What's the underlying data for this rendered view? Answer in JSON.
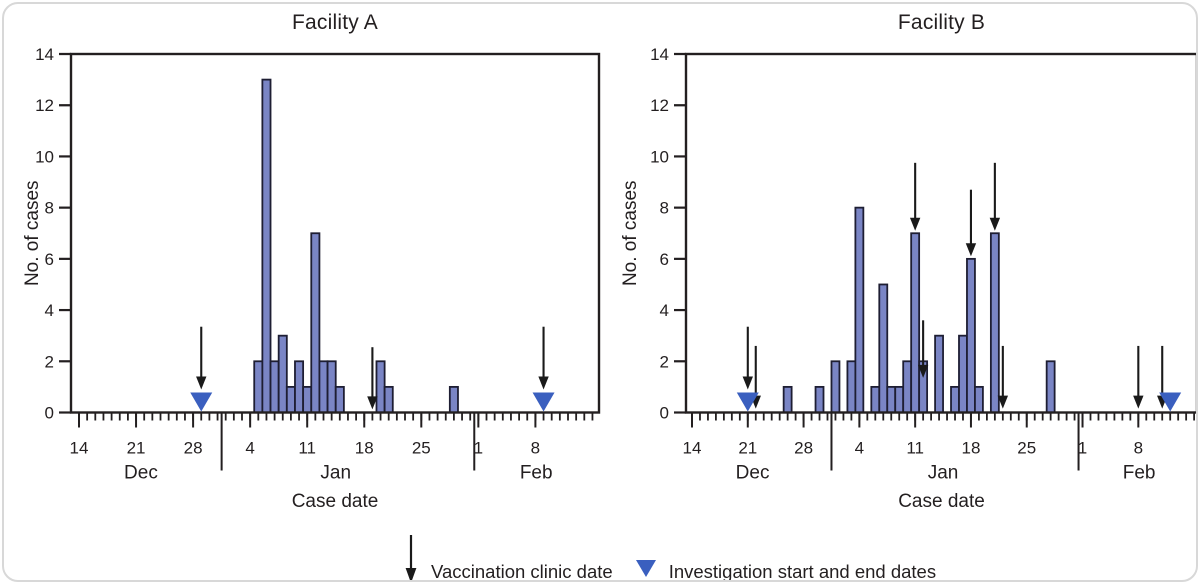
{
  "legend": {
    "vaccination_label": "Vaccination clinic date",
    "investigation_label": "Investigation start and end dates"
  },
  "colors": {
    "bar_fill": "#7a85c5",
    "bar_stroke": "#1e1e33",
    "triangle": "#3a5fbf",
    "axis": "#231f20",
    "arrow": "#1a1a1a"
  },
  "chart_data": [
    {
      "type": "bar",
      "title": "Facility A",
      "xlabel": "Case date",
      "ylabel": "No. of cases",
      "ylim": [
        0,
        14
      ],
      "yticks": [
        0,
        2,
        4,
        6,
        8,
        10,
        12,
        14
      ],
      "x_start_date": "Dec 14",
      "x_end_date": "Feb 15",
      "total_days": 63,
      "x_major_ticks": [
        {
          "day_index": 0,
          "label": "14"
        },
        {
          "day_index": 7,
          "label": "21"
        },
        {
          "day_index": 14,
          "label": "28"
        },
        {
          "day_index": 21,
          "label": "4"
        },
        {
          "day_index": 28,
          "label": "11"
        },
        {
          "day_index": 35,
          "label": "18"
        },
        {
          "day_index": 42,
          "label": "25"
        },
        {
          "day_index": 49,
          "label": "1"
        },
        {
          "day_index": 56,
          "label": "8"
        }
      ],
      "month_labels": [
        {
          "label": "Dec",
          "day_index": 7.6
        },
        {
          "label": "Jan",
          "day_index": 31.5
        },
        {
          "label": "Feb",
          "day_index": 56.1
        }
      ],
      "month_dividers": [
        17.5,
        48.5
      ],
      "bars": [
        {
          "date": "Jan 5",
          "day_index": 22,
          "count": 2
        },
        {
          "date": "Jan 6",
          "day_index": 23,
          "count": 13
        },
        {
          "date": "Jan 7",
          "day_index": 24,
          "count": 2
        },
        {
          "date": "Jan 8",
          "day_index": 25,
          "count": 3
        },
        {
          "date": "Jan 9",
          "day_index": 26,
          "count": 1
        },
        {
          "date": "Jan 10",
          "day_index": 27,
          "count": 2
        },
        {
          "date": "Jan 11",
          "day_index": 28,
          "count": 1
        },
        {
          "date": "Jan 12",
          "day_index": 29,
          "count": 7
        },
        {
          "date": "Jan 13",
          "day_index": 30,
          "count": 2
        },
        {
          "date": "Jan 14",
          "day_index": 31,
          "count": 2
        },
        {
          "date": "Jan 15",
          "day_index": 32,
          "count": 1
        },
        {
          "date": "Jan 20",
          "day_index": 37,
          "count": 2
        },
        {
          "date": "Jan 21",
          "day_index": 38,
          "count": 1
        },
        {
          "date": "Jan 29",
          "day_index": 46,
          "count": 1
        }
      ],
      "vaccination_arrows": [
        {
          "date": "Dec 29",
          "day_index": 15,
          "from": 3.35,
          "to": 0.9
        },
        {
          "date": "Jan 19",
          "day_index": 36,
          "from": 2.55,
          "to": 0.12
        },
        {
          "date": "Feb 9",
          "day_index": 57,
          "from": 3.35,
          "to": 0.9
        }
      ],
      "investigation_markers": [
        {
          "date": "Dec 29",
          "day_index": 15,
          "label": "start"
        },
        {
          "date": "Feb 9",
          "day_index": 57,
          "label": "end"
        }
      ]
    },
    {
      "type": "bar",
      "title": "Facility B",
      "xlabel": "Case date",
      "ylabel": "No. of cases",
      "ylim": [
        0,
        14
      ],
      "yticks": [
        0,
        2,
        4,
        6,
        8,
        10,
        12,
        14
      ],
      "x_start_date": "Dec 14",
      "x_end_date": "Feb 15",
      "total_days": 63,
      "x_major_ticks": [
        {
          "day_index": 0,
          "label": "14"
        },
        {
          "day_index": 7,
          "label": "21"
        },
        {
          "day_index": 14,
          "label": "28"
        },
        {
          "day_index": 21,
          "label": "4"
        },
        {
          "day_index": 28,
          "label": "11"
        },
        {
          "day_index": 35,
          "label": "18"
        },
        {
          "day_index": 42,
          "label": "25"
        },
        {
          "day_index": 49,
          "label": "1"
        },
        {
          "day_index": 56,
          "label": "8"
        }
      ],
      "month_labels": [
        {
          "label": "Dec",
          "day_index": 7.6
        },
        {
          "label": "Jan",
          "day_index": 31.5
        },
        {
          "label": "Feb",
          "day_index": 56.1
        }
      ],
      "month_dividers": [
        17.5,
        48.5
      ],
      "bars": [
        {
          "date": "Dec 26",
          "day_index": 12,
          "count": 1
        },
        {
          "date": "Dec 30",
          "day_index": 16,
          "count": 1
        },
        {
          "date": "Jan 1",
          "day_index": 18,
          "count": 2
        },
        {
          "date": "Jan 3",
          "day_index": 20,
          "count": 2
        },
        {
          "date": "Jan 4",
          "day_index": 21,
          "count": 8
        },
        {
          "date": "Jan 6",
          "day_index": 23,
          "count": 1
        },
        {
          "date": "Jan 7",
          "day_index": 24,
          "count": 5
        },
        {
          "date": "Jan 8",
          "day_index": 25,
          "count": 1
        },
        {
          "date": "Jan 9",
          "day_index": 26,
          "count": 1
        },
        {
          "date": "Jan 10",
          "day_index": 27,
          "count": 2
        },
        {
          "date": "Jan 11",
          "day_index": 28,
          "count": 7
        },
        {
          "date": "Jan 12",
          "day_index": 29,
          "count": 2
        },
        {
          "date": "Jan 14",
          "day_index": 31,
          "count": 3
        },
        {
          "date": "Jan 16",
          "day_index": 33,
          "count": 1
        },
        {
          "date": "Jan 17",
          "day_index": 34,
          "count": 3
        },
        {
          "date": "Jan 18",
          "day_index": 35,
          "count": 6
        },
        {
          "date": "Jan 19",
          "day_index": 36,
          "count": 1
        },
        {
          "date": "Jan 21",
          "day_index": 38,
          "count": 7
        },
        {
          "date": "Jan 28",
          "day_index": 45,
          "count": 2
        }
      ],
      "vaccination_arrows": [
        {
          "date": "Dec 21",
          "day_index": 7,
          "from": 3.35,
          "to": 0.9
        },
        {
          "date": "Dec 22",
          "day_index": 8,
          "from": 2.6,
          "to": 0.15
        },
        {
          "date": "Jan 11",
          "day_index": 28,
          "from": 9.75,
          "to": 7.1
        },
        {
          "date": "Jan 12",
          "day_index": 29,
          "from": 3.6,
          "to": 1.35
        },
        {
          "date": "Jan 18",
          "day_index": 35,
          "from": 8.7,
          "to": 6.1
        },
        {
          "date": "Jan 21",
          "day_index": 38,
          "from": 9.75,
          "to": 7.1
        },
        {
          "date": "Jan 22",
          "day_index": 39,
          "from": 2.6,
          "to": 0.15
        },
        {
          "date": "Feb 8",
          "day_index": 56,
          "from": 2.6,
          "to": 0.15
        },
        {
          "date": "Feb 11",
          "day_index": 59,
          "from": 2.6,
          "to": 0.15
        }
      ],
      "investigation_markers": [
        {
          "date": "Dec 21",
          "day_index": 7,
          "label": "start"
        },
        {
          "date": "Feb 12",
          "day_index": 60,
          "label": "end"
        }
      ]
    }
  ]
}
